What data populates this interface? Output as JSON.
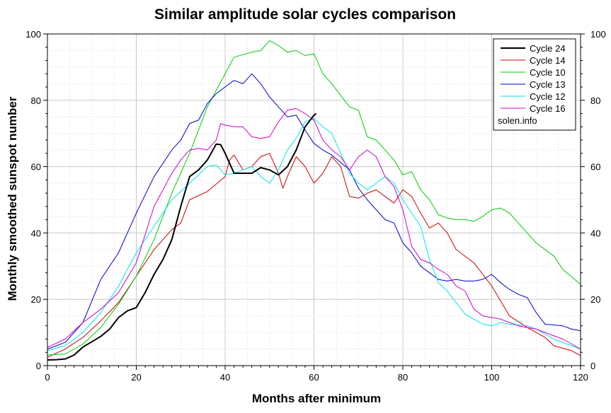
{
  "chart_data": {
    "type": "line",
    "title": "Similar amplitude solar cycles comparison",
    "xlabel": "Months after minimum",
    "ylabel": "Monthly smoothed sunspot number",
    "xlim": [
      0,
      120
    ],
    "ylim": [
      0,
      100
    ],
    "x_ticks": [
      0,
      20,
      40,
      60,
      80,
      100,
      120
    ],
    "y_ticks": [
      0,
      20,
      40,
      60,
      80,
      100
    ],
    "grid": true,
    "legend_position": "top-right",
    "legend_note": "solen.info",
    "series": [
      {
        "name": "Cycle 24",
        "color": "#000000",
        "width": 2,
        "points": [
          [
            0,
            1.7
          ],
          [
            2,
            1.8
          ],
          [
            4,
            2.0
          ],
          [
            6,
            3.2
          ],
          [
            8,
            5.6
          ],
          [
            10,
            7.2
          ],
          [
            12,
            8.8
          ],
          [
            14,
            11.0
          ],
          [
            16,
            14.5
          ],
          [
            18,
            16.5
          ],
          [
            20,
            17.5
          ],
          [
            22,
            22.0
          ],
          [
            24,
            27.5
          ],
          [
            26,
            32.0
          ],
          [
            28,
            38.0
          ],
          [
            30,
            48.0
          ],
          [
            32,
            57.0
          ],
          [
            34,
            59.0
          ],
          [
            36,
            62.0
          ],
          [
            38,
            66.8
          ],
          [
            39,
            66.6
          ],
          [
            40,
            64.0
          ],
          [
            42,
            58.0
          ],
          [
            44,
            58.0
          ],
          [
            46,
            58.0
          ],
          [
            48,
            59.7
          ],
          [
            50,
            59.0
          ],
          [
            52,
            57.5
          ],
          [
            54,
            60.0
          ],
          [
            56,
            65.0
          ],
          [
            58,
            72.0
          ],
          [
            60,
            75.5
          ],
          [
            60.5,
            76.0
          ]
        ]
      },
      {
        "name": "Cycle 14",
        "color": "#cc0000",
        "width": 1,
        "points": [
          [
            0,
            2.5
          ],
          [
            4,
            5.0
          ],
          [
            8,
            8.5
          ],
          [
            12,
            13.5
          ],
          [
            16,
            19.0
          ],
          [
            20,
            27.0
          ],
          [
            24,
            35.0
          ],
          [
            28,
            41.0
          ],
          [
            30,
            43.0
          ],
          [
            32,
            50.0
          ],
          [
            36,
            52.5
          ],
          [
            40,
            57.0
          ],
          [
            41,
            62.0
          ],
          [
            42,
            63.5
          ],
          [
            44,
            59.0
          ],
          [
            46,
            60.0
          ],
          [
            48,
            63.0
          ],
          [
            50,
            64.0
          ],
          [
            52,
            58.0
          ],
          [
            53,
            53.5
          ],
          [
            54,
            57.0
          ],
          [
            56,
            63.0
          ],
          [
            58,
            60.0
          ],
          [
            60,
            55.0
          ],
          [
            62,
            58.0
          ],
          [
            64,
            63.0
          ],
          [
            66,
            60.0
          ],
          [
            68,
            51.0
          ],
          [
            70,
            50.5
          ],
          [
            72,
            52.0
          ],
          [
            74,
            53.0
          ],
          [
            76,
            51.0
          ],
          [
            78,
            49.0
          ],
          [
            80,
            53.0
          ],
          [
            82,
            51.0
          ],
          [
            84,
            46.0
          ],
          [
            86,
            41.5
          ],
          [
            88,
            43.0
          ],
          [
            90,
            40.0
          ],
          [
            92,
            35.0
          ],
          [
            96,
            31.0
          ],
          [
            100,
            24.0
          ],
          [
            104,
            15.0
          ],
          [
            108,
            11.5
          ],
          [
            112,
            8.5
          ],
          [
            114,
            6.0
          ],
          [
            118,
            4.5
          ],
          [
            120,
            3.0
          ]
        ]
      },
      {
        "name": "Cycle 10",
        "color": "#00cc00",
        "width": 1,
        "points": [
          [
            0,
            3.2
          ],
          [
            4,
            3.5
          ],
          [
            8,
            6.5
          ],
          [
            12,
            11.5
          ],
          [
            16,
            18.5
          ],
          [
            20,
            27.0
          ],
          [
            24,
            38.0
          ],
          [
            28,
            52.0
          ],
          [
            32,
            64.0
          ],
          [
            36,
            78.0
          ],
          [
            40,
            88.0
          ],
          [
            42,
            93.0
          ],
          [
            46,
            94.5
          ],
          [
            48,
            95.0
          ],
          [
            50,
            98.0
          ],
          [
            52,
            96.5
          ],
          [
            54,
            94.5
          ],
          [
            56,
            95.0
          ],
          [
            58,
            93.5
          ],
          [
            60,
            94.0
          ],
          [
            62,
            88.0
          ],
          [
            64,
            85.0
          ],
          [
            68,
            78.0
          ],
          [
            70,
            77.0
          ],
          [
            72,
            69.0
          ],
          [
            74,
            68.0
          ],
          [
            76,
            65.0
          ],
          [
            78,
            62.0
          ],
          [
            80,
            57.5
          ],
          [
            82,
            58.5
          ],
          [
            84,
            53.0
          ],
          [
            86,
            50.0
          ],
          [
            88,
            45.5
          ],
          [
            90,
            44.5
          ],
          [
            92,
            44.0
          ],
          [
            94,
            44.0
          ],
          [
            96,
            43.5
          ],
          [
            98,
            45.0
          ],
          [
            100,
            47.0
          ],
          [
            102,
            47.5
          ],
          [
            104,
            46.0
          ],
          [
            106,
            43.0
          ],
          [
            108,
            40.0
          ],
          [
            110,
            37.0
          ],
          [
            114,
            33.0
          ],
          [
            116,
            29.0
          ],
          [
            120,
            24.5
          ]
        ]
      },
      {
        "name": "Cycle 13",
        "color": "#0000cc",
        "width": 1,
        "points": [
          [
            0,
            5.0
          ],
          [
            4,
            7.0
          ],
          [
            8,
            13.0
          ],
          [
            12,
            26.0
          ],
          [
            16,
            34.0
          ],
          [
            20,
            46.0
          ],
          [
            24,
            57.0
          ],
          [
            28,
            65.0
          ],
          [
            30,
            68.0
          ],
          [
            32,
            73.0
          ],
          [
            34,
            74.0
          ],
          [
            36,
            79.0
          ],
          [
            38,
            82.0
          ],
          [
            40,
            84.0
          ],
          [
            42,
            86.0
          ],
          [
            44,
            85.0
          ],
          [
            46,
            88.0
          ],
          [
            48,
            85.0
          ],
          [
            50,
            81.0
          ],
          [
            52,
            78.0
          ],
          [
            54,
            75.0
          ],
          [
            56,
            75.5
          ],
          [
            58,
            71.0
          ],
          [
            60,
            67.0
          ],
          [
            62,
            65.0
          ],
          [
            64,
            63.5
          ],
          [
            68,
            59.0
          ],
          [
            70,
            53.5
          ],
          [
            72,
            50.0
          ],
          [
            76,
            44.0
          ],
          [
            78,
            43.0
          ],
          [
            80,
            37.0
          ],
          [
            82,
            34.0
          ],
          [
            84,
            30.0
          ],
          [
            86,
            28.0
          ],
          [
            88,
            26.0
          ],
          [
            90,
            25.5
          ],
          [
            92,
            26.0
          ],
          [
            94,
            25.5
          ],
          [
            96,
            25.5
          ],
          [
            98,
            26.0
          ],
          [
            100,
            27.5
          ],
          [
            102,
            25.0
          ],
          [
            104,
            23.0
          ],
          [
            106,
            21.5
          ],
          [
            108,
            20.5
          ],
          [
            110,
            16.0
          ],
          [
            112,
            12.5
          ],
          [
            116,
            12.0
          ],
          [
            118,
            11.0
          ],
          [
            120,
            10.5
          ]
        ]
      },
      {
        "name": "Cycle 12",
        "color": "#00e6e6",
        "width": 1,
        "points": [
          [
            0,
            4.5
          ],
          [
            4,
            6.0
          ],
          [
            8,
            10.0
          ],
          [
            12,
            16.0
          ],
          [
            16,
            24.0
          ],
          [
            20,
            34.0
          ],
          [
            24,
            42.0
          ],
          [
            28,
            50.0
          ],
          [
            32,
            55.0
          ],
          [
            36,
            60.0
          ],
          [
            38,
            60.5
          ],
          [
            40,
            57.5
          ],
          [
            42,
            58.0
          ],
          [
            44,
            59.0
          ],
          [
            46,
            60.0
          ],
          [
            48,
            57.0
          ],
          [
            50,
            55.0
          ],
          [
            52,
            59.0
          ],
          [
            54,
            65.0
          ],
          [
            56,
            68.5
          ],
          [
            58,
            73.5
          ],
          [
            60,
            74.5
          ],
          [
            62,
            72.0
          ],
          [
            64,
            70.0
          ],
          [
            66,
            64.0
          ],
          [
            68,
            58.0
          ],
          [
            70,
            55.0
          ],
          [
            72,
            53.0
          ],
          [
            74,
            55.0
          ],
          [
            76,
            57.0
          ],
          [
            78,
            55.0
          ],
          [
            80,
            50.0
          ],
          [
            84,
            42.0
          ],
          [
            86,
            32.0
          ],
          [
            88,
            25.0
          ],
          [
            90,
            22.5
          ],
          [
            92,
            19.0
          ],
          [
            94,
            15.5
          ],
          [
            96,
            14.0
          ],
          [
            98,
            12.5
          ],
          [
            100,
            12.0
          ],
          [
            102,
            13.0
          ],
          [
            104,
            12.5
          ],
          [
            108,
            12.0
          ],
          [
            110,
            11.0
          ],
          [
            114,
            8.0
          ],
          [
            118,
            6.0
          ],
          [
            120,
            5.0
          ]
        ]
      },
      {
        "name": "Cycle 16",
        "color": "#cc00cc",
        "width": 1,
        "points": [
          [
            0,
            5.5
          ],
          [
            4,
            8.0
          ],
          [
            8,
            13.0
          ],
          [
            12,
            17.0
          ],
          [
            16,
            22.0
          ],
          [
            20,
            31.0
          ],
          [
            24,
            48.0
          ],
          [
            28,
            58.0
          ],
          [
            30,
            62.0
          ],
          [
            32,
            65.0
          ],
          [
            34,
            65.5
          ],
          [
            36,
            65.0
          ],
          [
            38,
            68.0
          ],
          [
            39,
            73.0
          ],
          [
            40,
            72.5
          ],
          [
            42,
            72.0
          ],
          [
            44,
            72.0
          ],
          [
            46,
            69.0
          ],
          [
            48,
            68.5
          ],
          [
            50,
            69.0
          ],
          [
            52,
            73.5
          ],
          [
            54,
            77.0
          ],
          [
            56,
            77.5
          ],
          [
            58,
            76.0
          ],
          [
            60,
            74.0
          ],
          [
            62,
            68.0
          ],
          [
            64,
            65.0
          ],
          [
            66,
            63.0
          ],
          [
            68,
            59.0
          ],
          [
            70,
            63.0
          ],
          [
            72,
            65.0
          ],
          [
            74,
            63.0
          ],
          [
            76,
            57.0
          ],
          [
            78,
            54.0
          ],
          [
            80,
            47.0
          ],
          [
            82,
            36.0
          ],
          [
            84,
            32.0
          ],
          [
            86,
            31.0
          ],
          [
            88,
            29.0
          ],
          [
            90,
            27.5
          ],
          [
            92,
            24.0
          ],
          [
            94,
            22.5
          ],
          [
            96,
            17.0
          ],
          [
            98,
            15.0
          ],
          [
            100,
            14.5
          ],
          [
            102,
            14.0
          ],
          [
            104,
            13.0
          ],
          [
            106,
            12.0
          ],
          [
            108,
            11.5
          ],
          [
            110,
            11.0
          ],
          [
            112,
            10.0
          ],
          [
            116,
            8.0
          ],
          [
            118,
            6.5
          ],
          [
            120,
            5.0
          ]
        ]
      }
    ]
  }
}
